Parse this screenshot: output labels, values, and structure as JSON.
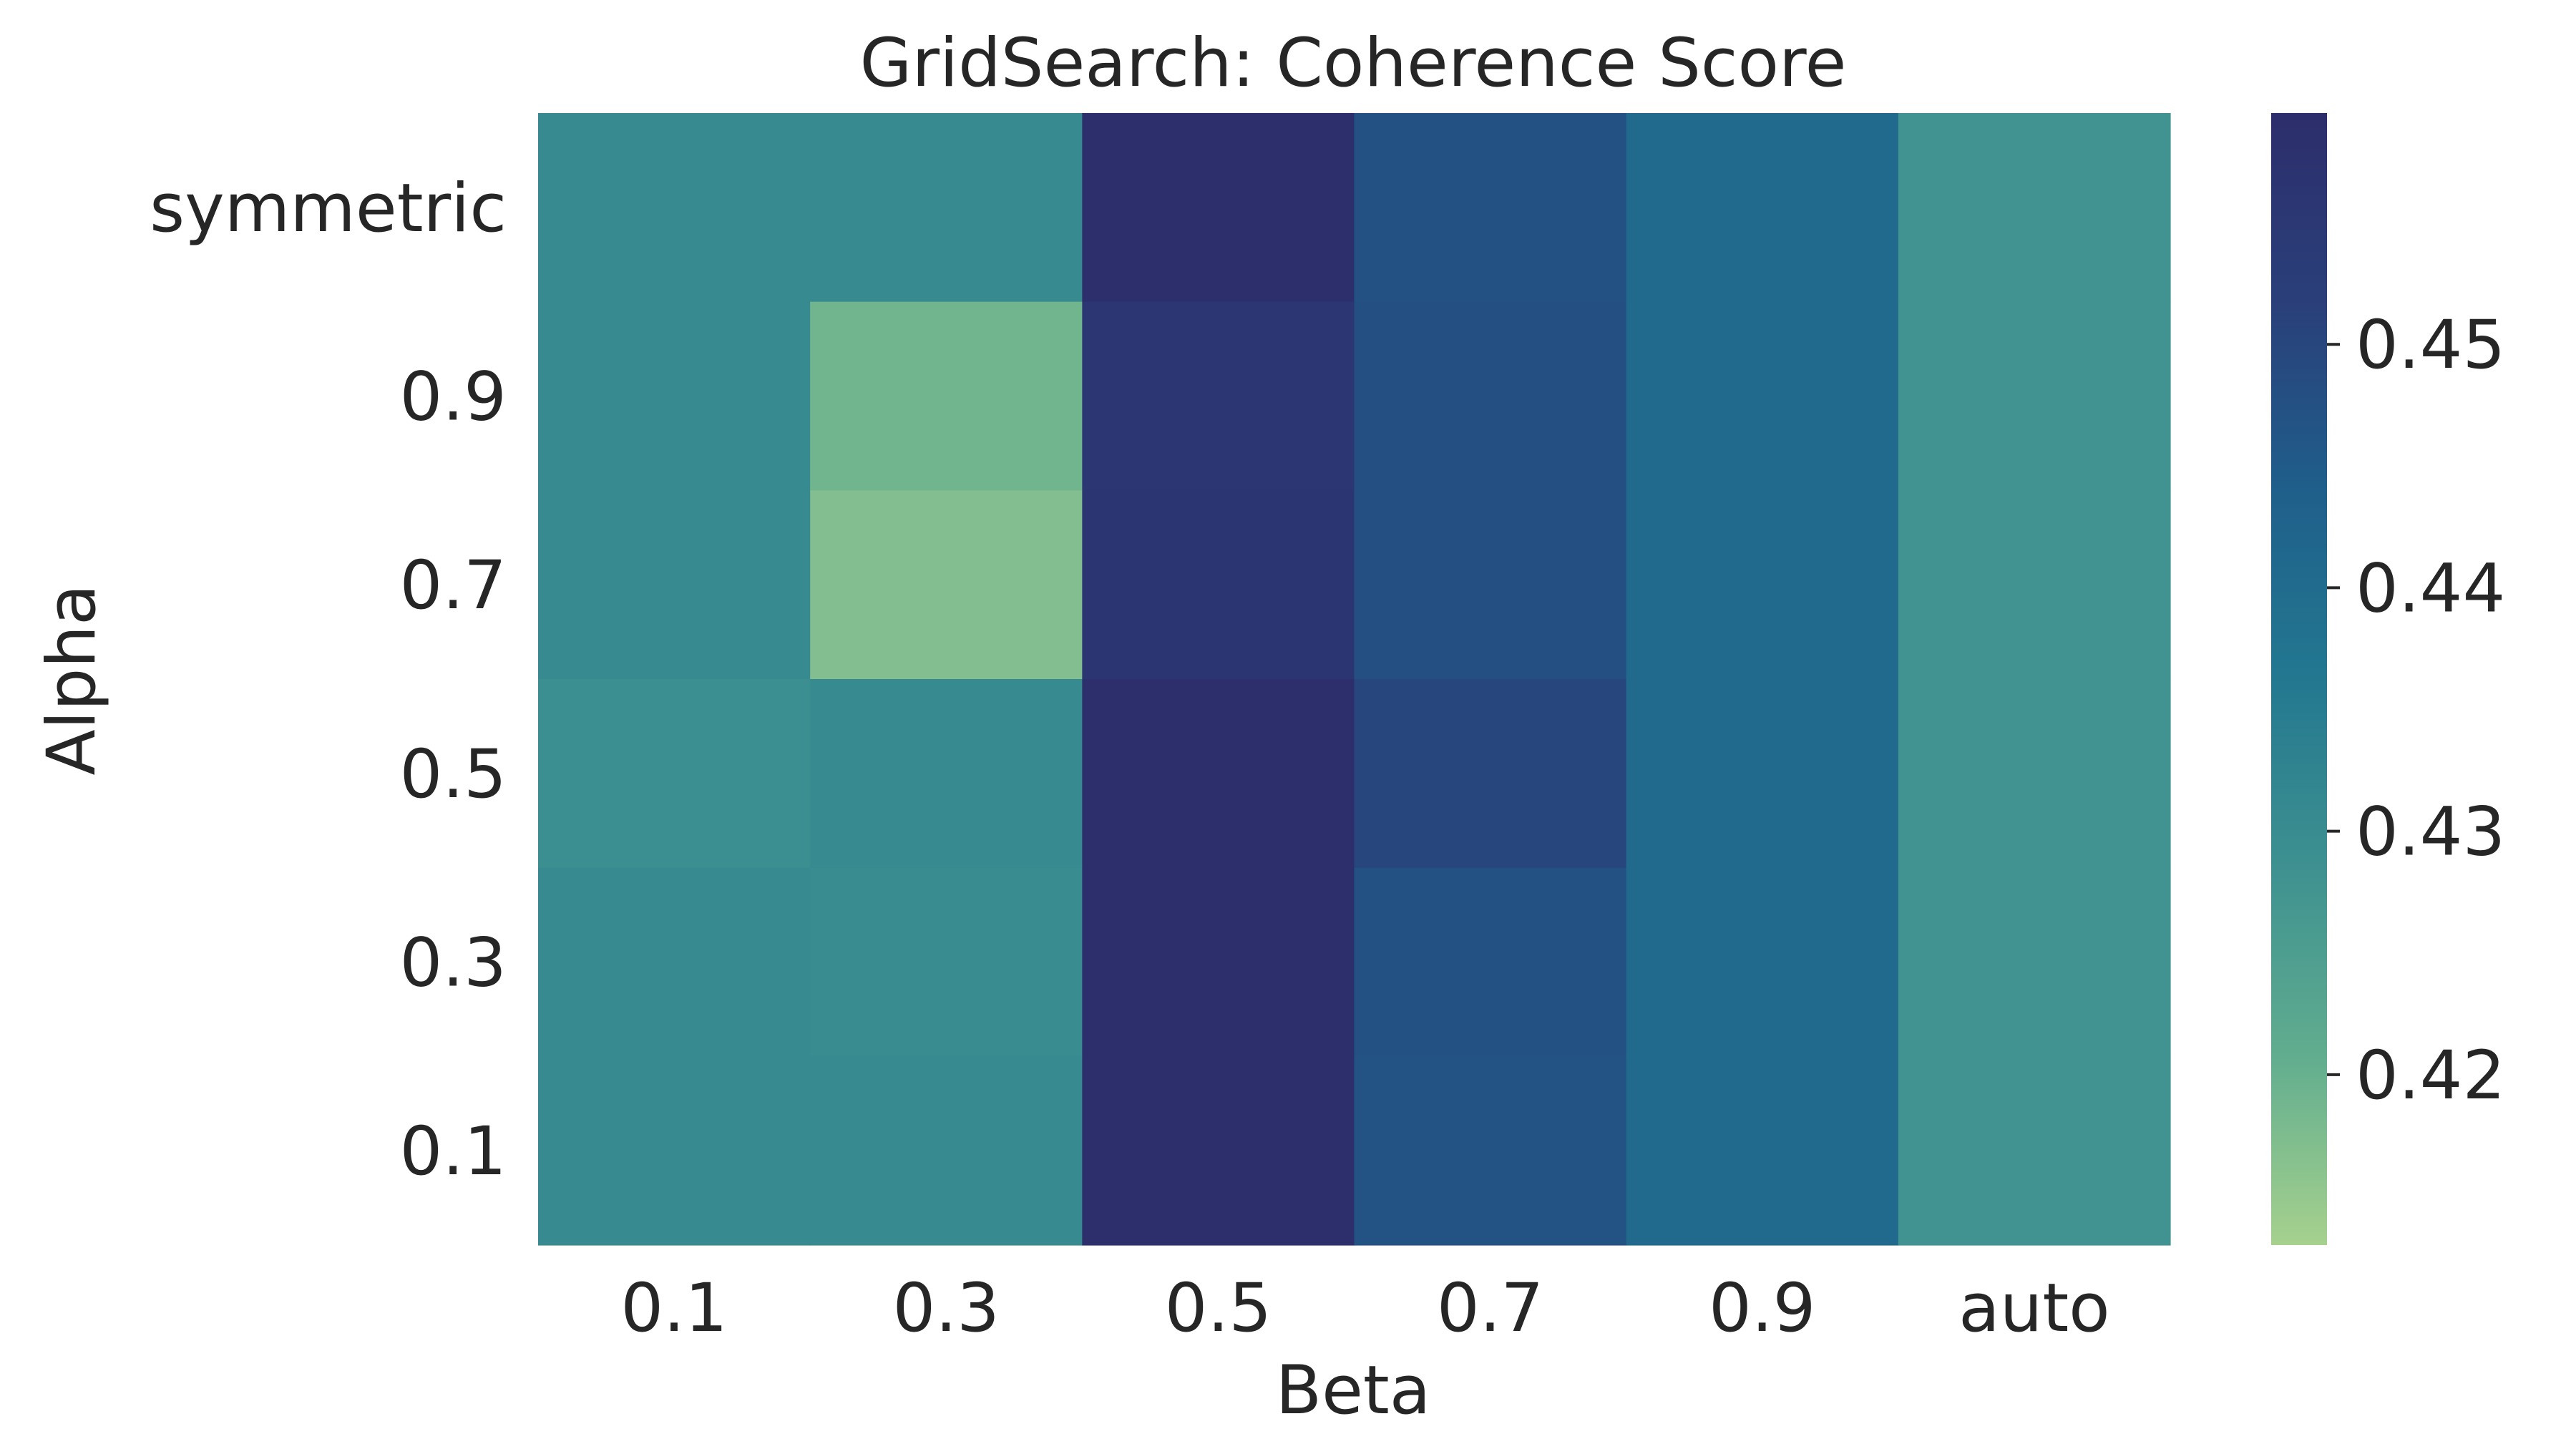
{
  "chart_data": {
    "type": "heatmap",
    "title": "GridSearch: Coherence Score",
    "xlabel": "Beta",
    "ylabel": "Alpha",
    "x_categories": [
      "0.1",
      "0.3",
      "0.5",
      "0.7",
      "0.9",
      "auto"
    ],
    "y_categories": [
      "symmetric",
      "0.9",
      "0.7",
      "0.5",
      "0.3",
      "0.1"
    ],
    "values": [
      [
        0.4305,
        0.4305,
        0.459,
        0.4475,
        0.4405,
        0.428
      ],
      [
        0.4305,
        0.419,
        0.456,
        0.4478,
        0.4405,
        0.428
      ],
      [
        0.4305,
        0.417,
        0.4563,
        0.4478,
        0.4405,
        0.428
      ],
      [
        0.429,
        0.4305,
        0.459,
        0.45,
        0.4405,
        0.428
      ],
      [
        0.4305,
        0.43,
        0.459,
        0.4475,
        0.4405,
        0.428
      ],
      [
        0.4305,
        0.4305,
        0.459,
        0.447,
        0.4405,
        0.428
      ]
    ],
    "colorbar": {
      "min": 0.413,
      "max": 0.4595,
      "ticks": [
        0.42,
        0.43,
        0.44,
        0.45
      ],
      "tick_labels": [
        "0.42",
        "0.43",
        "0.44",
        "0.45"
      ],
      "colormap": [
        "#a6d18e",
        "#61ad8f",
        "#3e9190",
        "#237890",
        "#1f5f8b",
        "#2a3f7a",
        "#2c2e6b"
      ]
    },
    "grid": false
  }
}
